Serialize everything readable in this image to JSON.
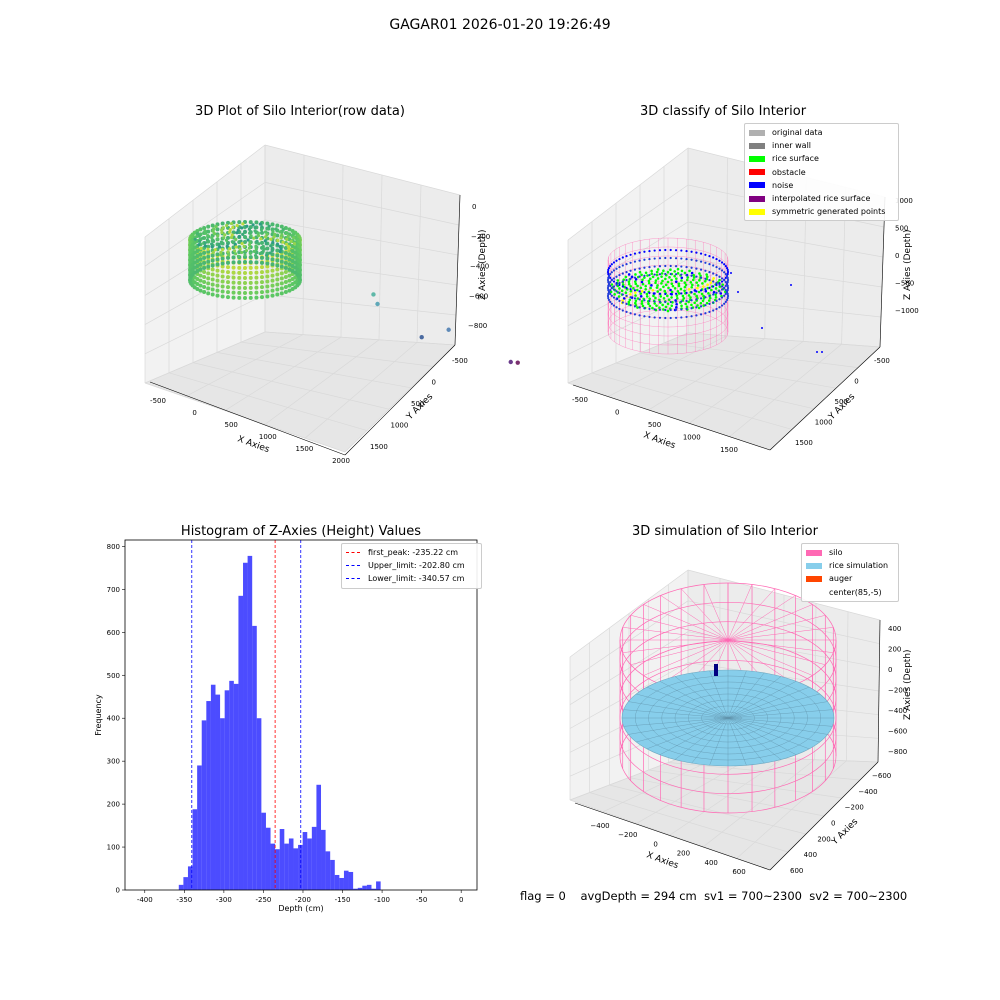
{
  "figure": {
    "suptitle": "GAGAR01 2026-01-20 19:26:49",
    "footer": {
      "flag": "flag = 0",
      "avg_depth": "avgDepth = 294 cm",
      "sv1": "sv1 = 700~2300",
      "sv2": "sv2 = 700~2300"
    }
  },
  "chart_data": [
    {
      "type": "scatter",
      "projection": "3d",
      "title": "3D Plot of Silo Interior(row data)",
      "xlabel": "X Axies",
      "ylabel": "Y Axies",
      "zlabel": "Z Axies (Depth)",
      "x_ticks": [
        "-500",
        "0",
        "500",
        "1000",
        "1500",
        "2000"
      ],
      "y_ticks": [
        "-500",
        "0",
        "500",
        "1000",
        "1500"
      ],
      "z_ticks": [
        "0",
        "−200",
        "−400",
        "−600",
        "−800"
      ],
      "colormap": "viridis",
      "outlier_points": [
        {
          "x": 880,
          "y": 430,
          "z": -430
        },
        {
          "x": 960,
          "y": 380,
          "z": -560
        },
        {
          "x": 1480,
          "y": 870,
          "z": -690
        },
        {
          "x": 1260,
          "y": 720,
          "z": -830
        },
        {
          "x": 1900,
          "y": 1350,
          "z": -900
        },
        {
          "x": 1950,
          "y": 1400,
          "z": -890
        }
      ],
      "grid": true
    },
    {
      "type": "scatter",
      "projection": "3d",
      "title": "3D classify of Silo Interior",
      "xlabel": "X Axies",
      "ylabel": "Y Axies",
      "zlabel": "Z Axies (Depth)",
      "x_ticks": [
        "-500",
        "0",
        "500",
        "1000",
        "1500"
      ],
      "y_ticks": [
        "-500",
        "0",
        "500",
        "1000",
        "1500"
      ],
      "z_ticks": [
        "1000",
        "500",
        "0",
        "−500",
        "−1000"
      ],
      "legend": [
        {
          "label": "original data",
          "color": "#b0b0b0"
        },
        {
          "label": "inner wall",
          "color": "#808080"
        },
        {
          "label": "rice surface",
          "color": "#00ff00"
        },
        {
          "label": "obstacle",
          "color": "#ff0000"
        },
        {
          "label": "noise",
          "color": "#0000ff"
        },
        {
          "label": "interpolated rice surface",
          "color": "#800080"
        },
        {
          "label": "symmetric generated points",
          "color": "#ffff00"
        }
      ],
      "legend_loc": "upper right",
      "grid": true
    },
    {
      "type": "bar",
      "title": "Histogram of Z-Axies (Height) Values",
      "xlabel": "Depth (cm)",
      "ylabel": "Frequency",
      "xlim": [
        -425,
        20
      ],
      "ylim": [
        0,
        815
      ],
      "x_ticks": [
        -400,
        -350,
        -300,
        -250,
        -200,
        -150,
        -100,
        -50,
        0
      ],
      "y_ticks": [
        0,
        100,
        200,
        300,
        400,
        500,
        600,
        700,
        800
      ],
      "bin_width": 5.8,
      "bins_start": -357,
      "values": [
        12,
        30,
        55,
        188,
        290,
        395,
        440,
        478,
        455,
        400,
        465,
        487,
        480,
        685,
        762,
        778,
        615,
        400,
        180,
        145,
        108,
        95,
        142,
        108,
        120,
        97,
        105,
        135,
        120,
        147,
        245,
        140,
        90,
        70,
        35,
        28,
        45,
        42,
        3,
        5,
        10,
        12,
        3,
        20
      ],
      "bar_color": "#0000ff",
      "bar_alpha": 0.7,
      "vlines": [
        {
          "x": -235.22,
          "color": "#ff0000",
          "label": "first_peak: -235.22 cm"
        },
        {
          "x": -202.8,
          "color": "#0000ff",
          "label": "Upper_limit: -202.80 cm"
        },
        {
          "x": -340.57,
          "color": "#0000ff",
          "label": "Lower_limit: -340.57 cm"
        }
      ],
      "legend_loc": "upper right"
    },
    {
      "type": "surface",
      "projection": "3d",
      "title": "3D simulation of Silo Interior",
      "xlabel": "X Axies",
      "ylabel": "Y Axies",
      "zlabel": "Z Axies (Depth)",
      "x_ticks": [
        "−400",
        "−200",
        "0",
        "200",
        "400",
        "600"
      ],
      "y_ticks": [
        "−600",
        "−400",
        "−200",
        "0",
        "200",
        "400",
        "600"
      ],
      "z_ticks": [
        "400",
        "200",
        "0",
        "−200",
        "−400",
        "−600",
        "−800"
      ],
      "legend": [
        {
          "label": "silo",
          "color": "#ff69b4"
        },
        {
          "label": "rice simulation",
          "color": "#87ceeb"
        },
        {
          "label": "auger",
          "color": "#ff4500"
        },
        {
          "label": "center(85,-5)",
          "color": "none"
        }
      ],
      "legend_loc": "upper right",
      "grid": true
    }
  ]
}
